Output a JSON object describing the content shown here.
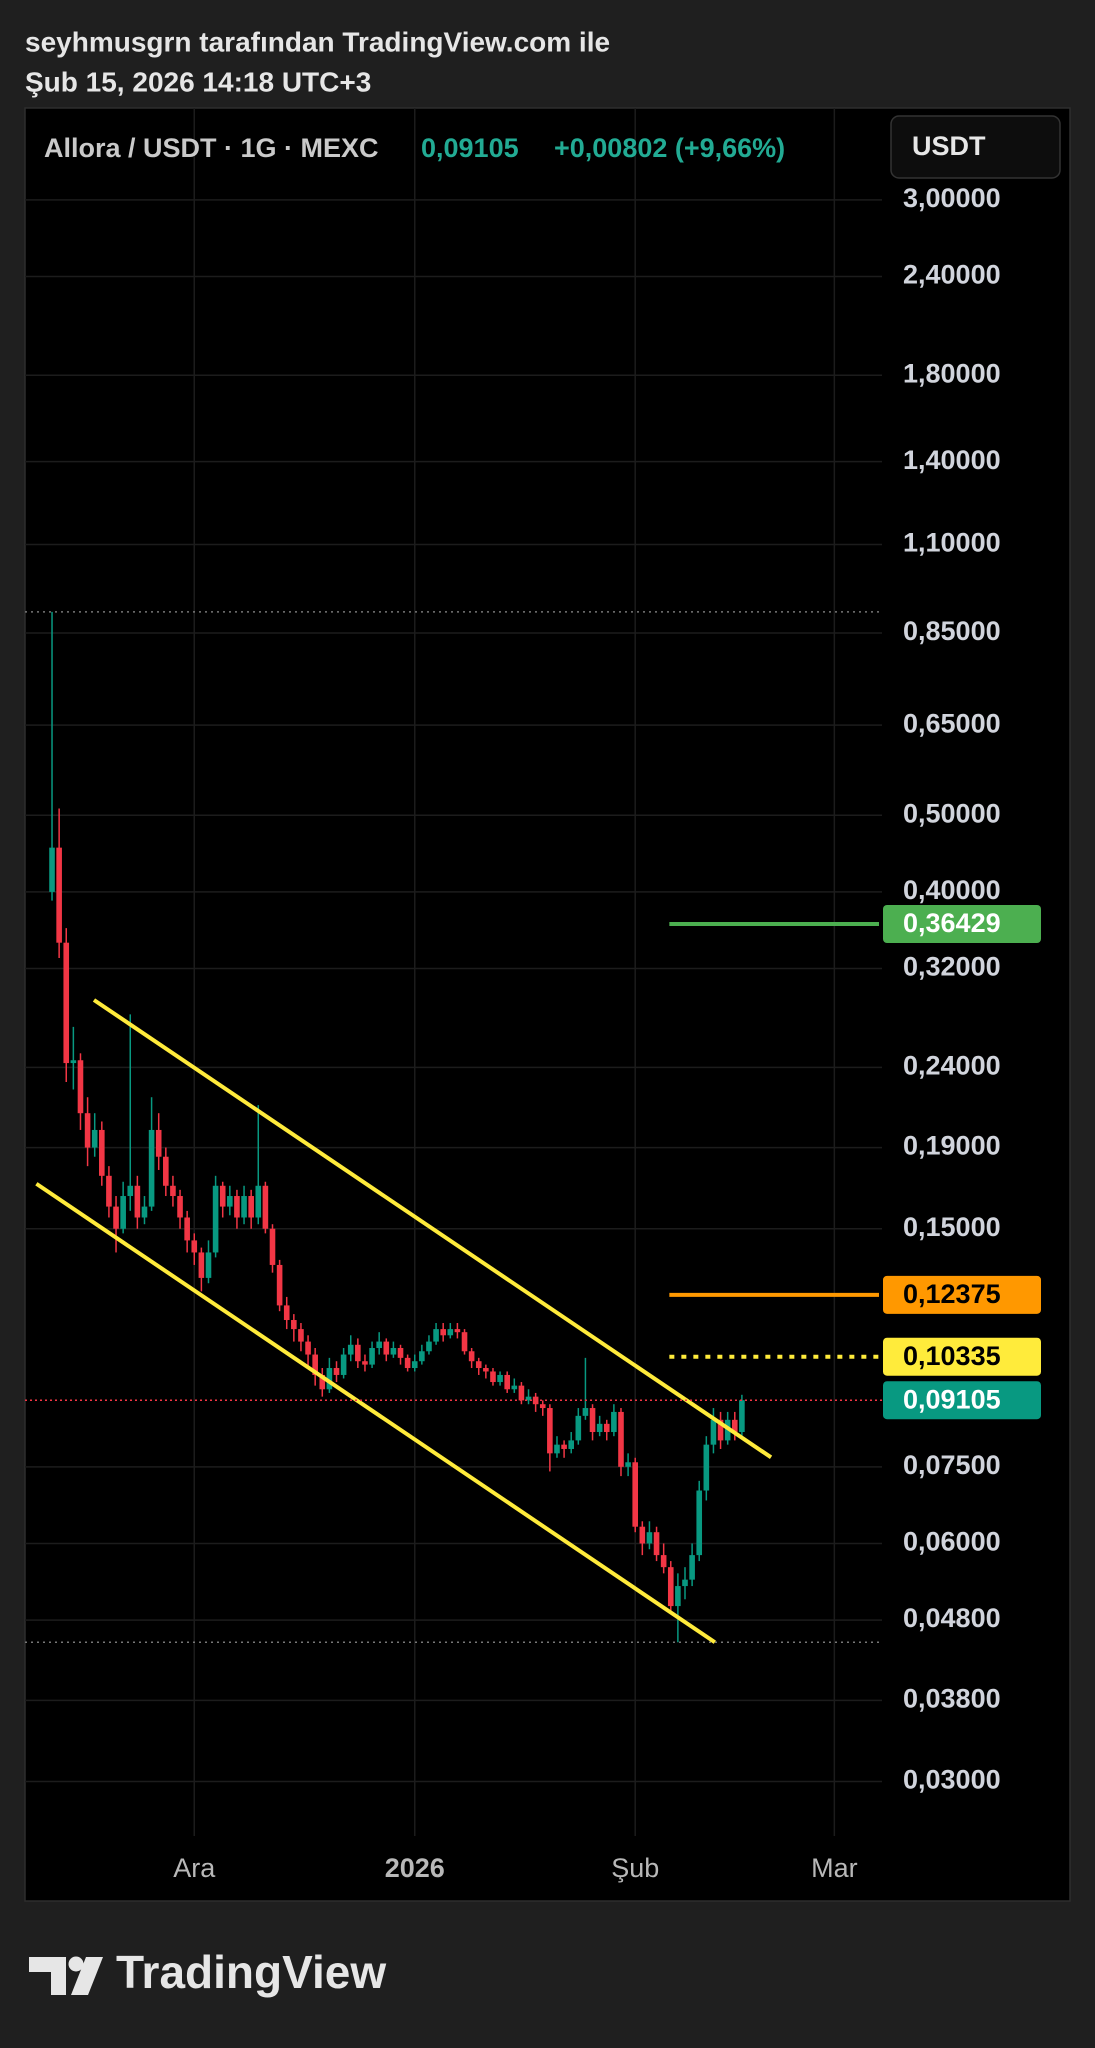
{
  "header": {
    "author_line": "seyhmusgrn tarafından TradingView.com ile",
    "date_line": "Şub 15, 2026 14:18 UTC+3"
  },
  "footer": {
    "brand": "TradingView"
  },
  "chart_data": {
    "type": "candlestick",
    "title": "Allora / USDT · 1G · MEXC",
    "last_price_label": "0,09105",
    "change_label": "+0,00802 (+9,66%)",
    "currency": "USDT",
    "log_scale": true,
    "grid": true,
    "up_color": "#089981",
    "down_color": "#f23645",
    "x": [
      0,
      1,
      2,
      3,
      4,
      5,
      6,
      7,
      8,
      9,
      10,
      11,
      12,
      13,
      14,
      15,
      16,
      17,
      18,
      19,
      20,
      21,
      22,
      23,
      24,
      25,
      26,
      27,
      28,
      29,
      30,
      31,
      32,
      33,
      34,
      35,
      36,
      37,
      38,
      39,
      40,
      41,
      42,
      43,
      44,
      45,
      46,
      47,
      48,
      49,
      50,
      51,
      52,
      53,
      54,
      55,
      56,
      57,
      58,
      59,
      60,
      61,
      62,
      63,
      64,
      65,
      66,
      67,
      68,
      69,
      70,
      71,
      72,
      73,
      74,
      75,
      76,
      77,
      78,
      79,
      80,
      81,
      82,
      83,
      84,
      85,
      86,
      87,
      88,
      89,
      90,
      91,
      92,
      93,
      94,
      95,
      96,
      97
    ],
    "open": [
      0.4,
      0.455,
      0.345,
      0.243,
      0.245,
      0.21,
      0.19,
      0.2,
      0.175,
      0.16,
      0.15,
      0.165,
      0.17,
      0.155,
      0.16,
      0.2,
      0.185,
      0.17,
      0.165,
      0.155,
      0.145,
      0.14,
      0.13,
      0.14,
      0.17,
      0.16,
      0.165,
      0.155,
      0.165,
      0.155,
      0.17,
      0.15,
      0.135,
      0.12,
      0.115,
      0.112,
      0.108,
      0.104,
      0.098,
      0.094,
      0.1,
      0.098,
      0.104,
      0.107,
      0.102,
      0.101,
      0.106,
      0.108,
      0.104,
      0.106,
      0.103,
      0.1,
      0.102,
      0.105,
      0.108,
      0.112,
      0.11,
      0.112,
      0.111,
      0.105,
      0.102,
      0.1,
      0.099,
      0.096,
      0.098,
      0.094,
      0.095,
      0.091,
      0.092,
      0.09,
      0.089,
      0.078,
      0.08,
      0.079,
      0.081,
      0.087,
      0.089,
      0.083,
      0.085,
      0.083,
      0.088,
      0.075,
      0.076,
      0.063,
      0.06,
      0.062,
      0.058,
      0.056,
      0.05,
      0.053,
      0.054,
      0.058,
      0.07,
      0.08,
      0.086,
      0.081,
      0.086,
      0.083
    ],
    "high": [
      0.904,
      0.51,
      0.36,
      0.27,
      0.25,
      0.22,
      0.21,
      0.205,
      0.18,
      0.165,
      0.172,
      0.28,
      0.175,
      0.165,
      0.22,
      0.21,
      0.19,
      0.175,
      0.168,
      0.158,
      0.148,
      0.142,
      0.145,
      0.175,
      0.172,
      0.17,
      0.168,
      0.17,
      0.168,
      0.215,
      0.172,
      0.152,
      0.137,
      0.123,
      0.117,
      0.114,
      0.11,
      0.106,
      0.1,
      0.103,
      0.102,
      0.106,
      0.11,
      0.109,
      0.104,
      0.108,
      0.111,
      0.109,
      0.108,
      0.107,
      0.104,
      0.104,
      0.107,
      0.11,
      0.114,
      0.114,
      0.114,
      0.114,
      0.112,
      0.106,
      0.103,
      0.101,
      0.1,
      0.099,
      0.099,
      0.097,
      0.096,
      0.094,
      0.093,
      0.091,
      0.09,
      0.082,
      0.081,
      0.083,
      0.089,
      0.103,
      0.09,
      0.087,
      0.086,
      0.09,
      0.089,
      0.078,
      0.077,
      0.064,
      0.064,
      0.063,
      0.06,
      0.057,
      0.055,
      0.056,
      0.06,
      0.072,
      0.082,
      0.089,
      0.088,
      0.088,
      0.088,
      0.0925
    ],
    "low": [
      0.39,
      0.33,
      0.23,
      0.225,
      0.2,
      0.18,
      0.185,
      0.17,
      0.155,
      0.14,
      0.148,
      0.158,
      0.15,
      0.152,
      0.158,
      0.178,
      0.165,
      0.16,
      0.15,
      0.14,
      0.135,
      0.125,
      0.128,
      0.138,
      0.155,
      0.156,
      0.15,
      0.152,
      0.15,
      0.152,
      0.148,
      0.132,
      0.118,
      0.112,
      0.108,
      0.105,
      0.1,
      0.095,
      0.092,
      0.093,
      0.096,
      0.097,
      0.102,
      0.1,
      0.099,
      0.1,
      0.104,
      0.102,
      0.103,
      0.101,
      0.099,
      0.099,
      0.101,
      0.104,
      0.107,
      0.108,
      0.109,
      0.109,
      0.104,
      0.1,
      0.098,
      0.097,
      0.095,
      0.095,
      0.093,
      0.093,
      0.09,
      0.09,
      0.088,
      0.087,
      0.074,
      0.077,
      0.077,
      0.078,
      0.08,
      0.086,
      0.081,
      0.082,
      0.081,
      0.082,
      0.073,
      0.073,
      0.062,
      0.058,
      0.059,
      0.057,
      0.055,
      0.049,
      0.045,
      0.051,
      0.053,
      0.057,
      0.068,
      0.078,
      0.079,
      0.08,
      0.081,
      0.082
    ],
    "close": [
      0.455,
      0.345,
      0.243,
      0.245,
      0.21,
      0.19,
      0.2,
      0.175,
      0.16,
      0.15,
      0.165,
      0.17,
      0.155,
      0.16,
      0.2,
      0.185,
      0.17,
      0.165,
      0.155,
      0.145,
      0.14,
      0.13,
      0.14,
      0.17,
      0.16,
      0.165,
      0.155,
      0.165,
      0.155,
      0.17,
      0.15,
      0.135,
      0.12,
      0.115,
      0.112,
      0.108,
      0.104,
      0.098,
      0.094,
      0.1,
      0.098,
      0.104,
      0.107,
      0.102,
      0.101,
      0.106,
      0.108,
      0.104,
      0.106,
      0.103,
      0.1,
      0.102,
      0.105,
      0.108,
      0.112,
      0.11,
      0.112,
      0.111,
      0.105,
      0.102,
      0.1,
      0.099,
      0.096,
      0.098,
      0.094,
      0.095,
      0.091,
      0.092,
      0.09,
      0.089,
      0.078,
      0.08,
      0.079,
      0.081,
      0.087,
      0.089,
      0.083,
      0.085,
      0.083,
      0.088,
      0.075,
      0.076,
      0.063,
      0.06,
      0.062,
      0.058,
      0.056,
      0.05,
      0.053,
      0.054,
      0.058,
      0.07,
      0.08,
      0.086,
      0.081,
      0.086,
      0.083,
      0.09105
    ],
    "xlim": [
      -3.8,
      116.7
    ],
    "xticks": [
      {
        "value": 20,
        "label": "Ara"
      },
      {
        "value": 51,
        "label": "2026"
      },
      {
        "value": 82,
        "label": "Şub"
      },
      {
        "value": 110,
        "label": "Mar"
      }
    ],
    "ylim": [
      0.0256,
      3.92
    ],
    "yticks": [
      {
        "value": 3,
        "label": "3,00000"
      },
      {
        "value": 2.4,
        "label": "2,40000"
      },
      {
        "value": 1.8,
        "label": "1,80000"
      },
      {
        "value": 1.4,
        "label": "1,40000"
      },
      {
        "value": 1.1,
        "label": "1,10000"
      },
      {
        "value": 0.85,
        "label": "0,85000"
      },
      {
        "value": 0.65,
        "label": "0,65000"
      },
      {
        "value": 0.5,
        "label": "0,50000"
      },
      {
        "value": 0.4,
        "label": "0,40000"
      },
      {
        "value": 0.32,
        "label": "0,32000"
      },
      {
        "value": 0.24,
        "label": "0,24000"
      },
      {
        "value": 0.19,
        "label": "0,19000"
      },
      {
        "value": 0.15,
        "label": "0,15000"
      },
      {
        "value": 0.075,
        "label": "0,07500"
      },
      {
        "value": 0.06,
        "label": "0,06000"
      },
      {
        "value": 0.048,
        "label": "0,04800"
      },
      {
        "value": 0.038,
        "label": "0,03800"
      },
      {
        "value": 0.03,
        "label": "0,03000"
      }
    ],
    "levels": [
      {
        "value": 0.36429,
        "label": "0,36429",
        "color": "#4caf50",
        "text_color": "#ffffff",
        "style": "solid",
        "x_start": 86.8
      },
      {
        "value": 0.12375,
        "label": "0,12375",
        "color": "#ff9800",
        "text_color": "#000000",
        "style": "solid",
        "x_start": 86.8
      },
      {
        "value": 0.10335,
        "label": "0,10335",
        "color": "#ffeb3b",
        "text_color": "#000000",
        "style": "dotted",
        "x_start": 86.8
      }
    ],
    "trendlines": [
      {
        "color": "#ffeb3b",
        "x": [
          5.9,
          101.1
        ],
        "y": [
          0.292,
          0.0771
        ]
      },
      {
        "color": "#ffeb3b",
        "x": [
          -2.2,
          93.2
        ],
        "y": [
          0.171,
          0.045
        ]
      }
    ]
  }
}
